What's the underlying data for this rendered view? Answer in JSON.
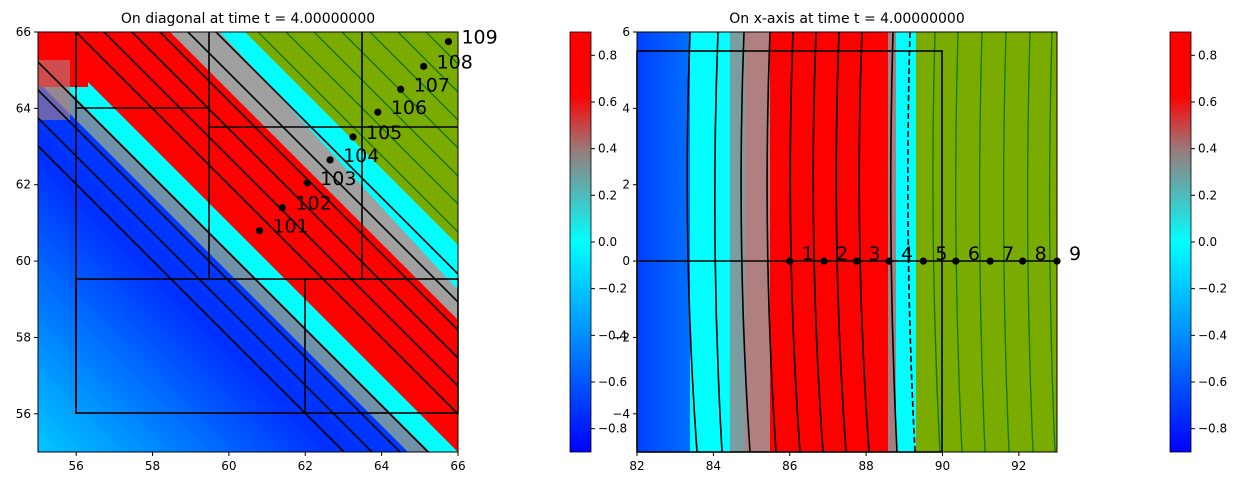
{
  "colors": {
    "red": "#ff0000",
    "cyan": "#00ffff",
    "green": "#7aab00",
    "blue": "#0020ff",
    "gray": "#9a8080",
    "outline": "#000000",
    "contour_green": "#1a7a00"
  },
  "chart_data": [
    {
      "type": "heatmap",
      "title": "On diagonal at time t =      4.00000000",
      "xlim": [
        55,
        66
      ],
      "ylim": [
        55,
        66
      ],
      "xticks": [
        "56",
        "58",
        "60",
        "62",
        "64",
        "66"
      ],
      "yticks": [
        "56",
        "58",
        "60",
        "62",
        "64",
        "66"
      ],
      "points": [
        {
          "x": 60.8,
          "y": 60.8,
          "label": "101"
        },
        {
          "x": 61.4,
          "y": 61.4,
          "label": "102"
        },
        {
          "x": 62.05,
          "y": 62.05,
          "label": "103"
        },
        {
          "x": 62.65,
          "y": 62.65,
          "label": "104"
        },
        {
          "x": 63.25,
          "y": 63.25,
          "label": "105"
        },
        {
          "x": 63.9,
          "y": 63.9,
          "label": "106"
        },
        {
          "x": 64.5,
          "y": 64.5,
          "label": "107"
        },
        {
          "x": 65.1,
          "y": 65.1,
          "label": "108"
        },
        {
          "x": 65.75,
          "y": 65.75,
          "label": "109"
        }
      ],
      "colorbar": {
        "ticks": [
          "−0.8",
          "−0.6",
          "−0.4",
          "−0.2",
          "0.0",
          "0.2",
          "0.4",
          "0.6",
          "0.8"
        ]
      }
    },
    {
      "type": "heatmap",
      "title": "On x-axis at time t =      4.00000000",
      "xlim": [
        82,
        93
      ],
      "ylim": [
        -5,
        6
      ],
      "xticks": [
        "82",
        "84",
        "86",
        "88",
        "90",
        "92"
      ],
      "yticks": [
        "−4",
        "−2",
        "0",
        "2",
        "4",
        "6"
      ],
      "points": [
        {
          "x": 86.0,
          "y": 0,
          "label": "1"
        },
        {
          "x": 86.9,
          "y": 0,
          "label": "2"
        },
        {
          "x": 87.75,
          "y": 0,
          "label": "3"
        },
        {
          "x": 88.6,
          "y": 0,
          "label": "4"
        },
        {
          "x": 89.5,
          "y": 0,
          "label": "5"
        },
        {
          "x": 90.35,
          "y": 0,
          "label": "6"
        },
        {
          "x": 91.25,
          "y": 0,
          "label": "7"
        },
        {
          "x": 92.1,
          "y": 0,
          "label": "8"
        },
        {
          "x": 93.0,
          "y": 0,
          "label": "9"
        }
      ],
      "colorbar": {
        "ticks": [
          "−0.8",
          "−0.6",
          "−0.4",
          "−0.2",
          "0.0",
          "0.2",
          "0.4",
          "0.6",
          "0.8"
        ]
      }
    }
  ]
}
